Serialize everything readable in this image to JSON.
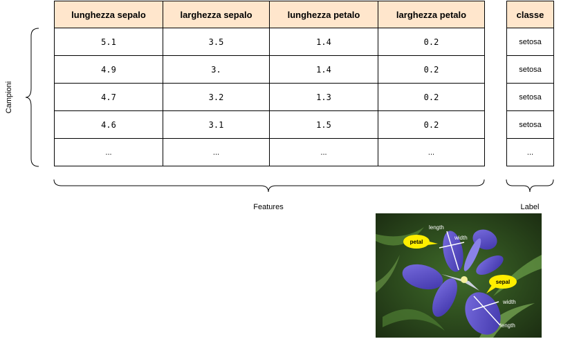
{
  "features_table": {
    "headers": [
      "lunghezza sepalo",
      "larghezza sepalo",
      "lunghezza petalo",
      "larghezza petalo"
    ],
    "rows": [
      [
        "5.1",
        "3.5",
        "1.4",
        "0.2"
      ],
      [
        "4.9",
        "3.",
        "1.4",
        "0.2"
      ],
      [
        "4.7",
        "3.2",
        "1.3",
        "0.2"
      ],
      [
        "4.6",
        "3.1",
        "1.5",
        "0.2"
      ],
      [
        "...",
        "...",
        "...",
        "..."
      ]
    ]
  },
  "label_table": {
    "header": "classe",
    "rows": [
      "setosa",
      "setosa",
      "setosa",
      "setosa",
      "..."
    ]
  },
  "captions": {
    "campioni": "Campioni",
    "features": "Features",
    "label": "Label"
  },
  "iris_image": {
    "annotations": {
      "petal": "petal",
      "sepal": "sepal",
      "length_top": "length",
      "width_top": "width",
      "width_bottom": "width",
      "length_bottom": "length"
    },
    "colors": {
      "background": "#2d4a1e",
      "petal": "#5a4fc8",
      "bubble": "#ffee00"
    }
  }
}
